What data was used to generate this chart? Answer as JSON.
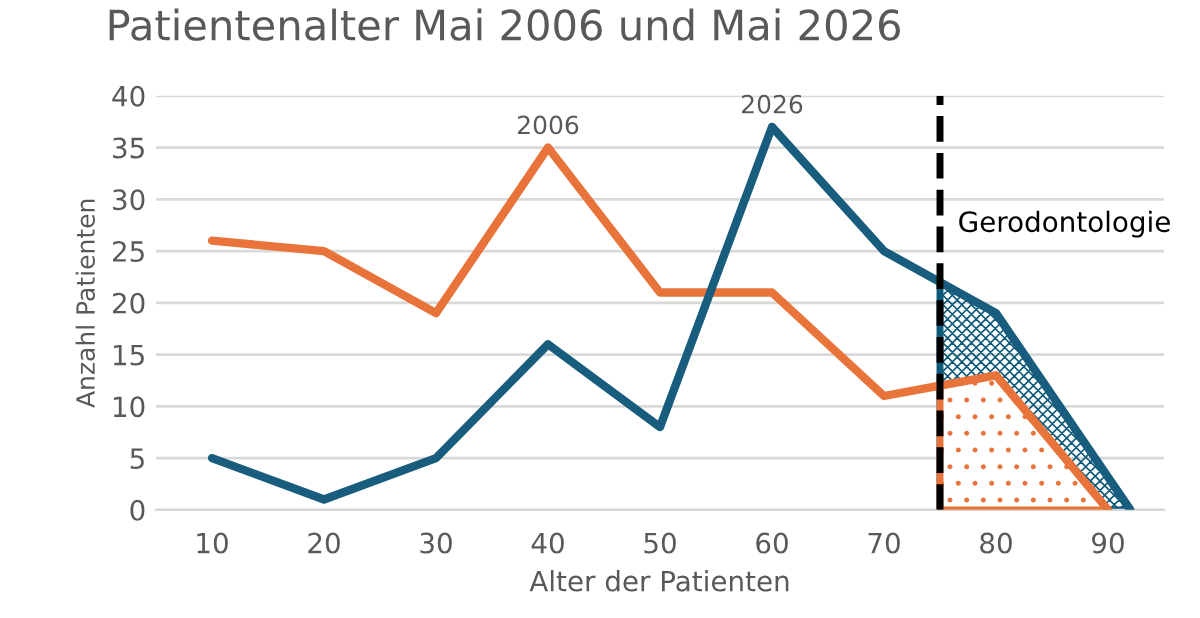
{
  "chart_data": {
    "type": "line",
    "title": "Patientenalter Mai 2006 und Mai 2026",
    "xlabel": "Alter der Patienten",
    "ylabel": "Anzahl Patienten",
    "series": [
      {
        "type": "area",
        "color": "#0e5a7a",
        "x": [
          75,
          80,
          92
        ],
        "values": [
          22,
          19,
          0
        ]
      },
      {
        "type": "area",
        "color": "#e8743b",
        "x": [
          75,
          80,
          90
        ],
        "values": [
          12,
          13,
          0
        ]
      },
      {
        "color": "#e8743b",
        "x": [
          10,
          20,
          30,
          40,
          50,
          60,
          70,
          75,
          80,
          90
        ],
        "values": [
          26,
          25,
          19,
          35,
          21,
          21,
          11,
          12,
          13,
          0
        ]
      },
      {
        "color": "#185d7d",
        "x": [
          10,
          20,
          30,
          40,
          50,
          60,
          70,
          75,
          80,
          92
        ],
        "values": [
          5,
          1,
          5,
          16,
          8,
          37,
          25,
          22,
          19,
          0
        ]
      }
    ],
    "annotations": [
      {
        "text": "2006",
        "x": 40,
        "y": 35
      },
      {
        "text": "2026",
        "x": 60,
        "y": 37
      }
    ],
    "ref_lines": [
      {
        "axis": "x",
        "value": 75,
        "label": "Gerodontologie",
        "color": "#000000",
        "line_style": "dashed"
      }
    ],
    "xlim": [
      5,
      95
    ],
    "xticks": [
      10,
      20,
      30,
      40,
      50,
      60,
      70,
      80,
      90
    ],
    "ylim": [
      0,
      40
    ],
    "yticks": [
      0,
      5,
      10,
      15,
      20,
      25,
      30,
      35,
      40
    ],
    "grid": "y",
    "line_style": "solid",
    "marker": "none"
  }
}
